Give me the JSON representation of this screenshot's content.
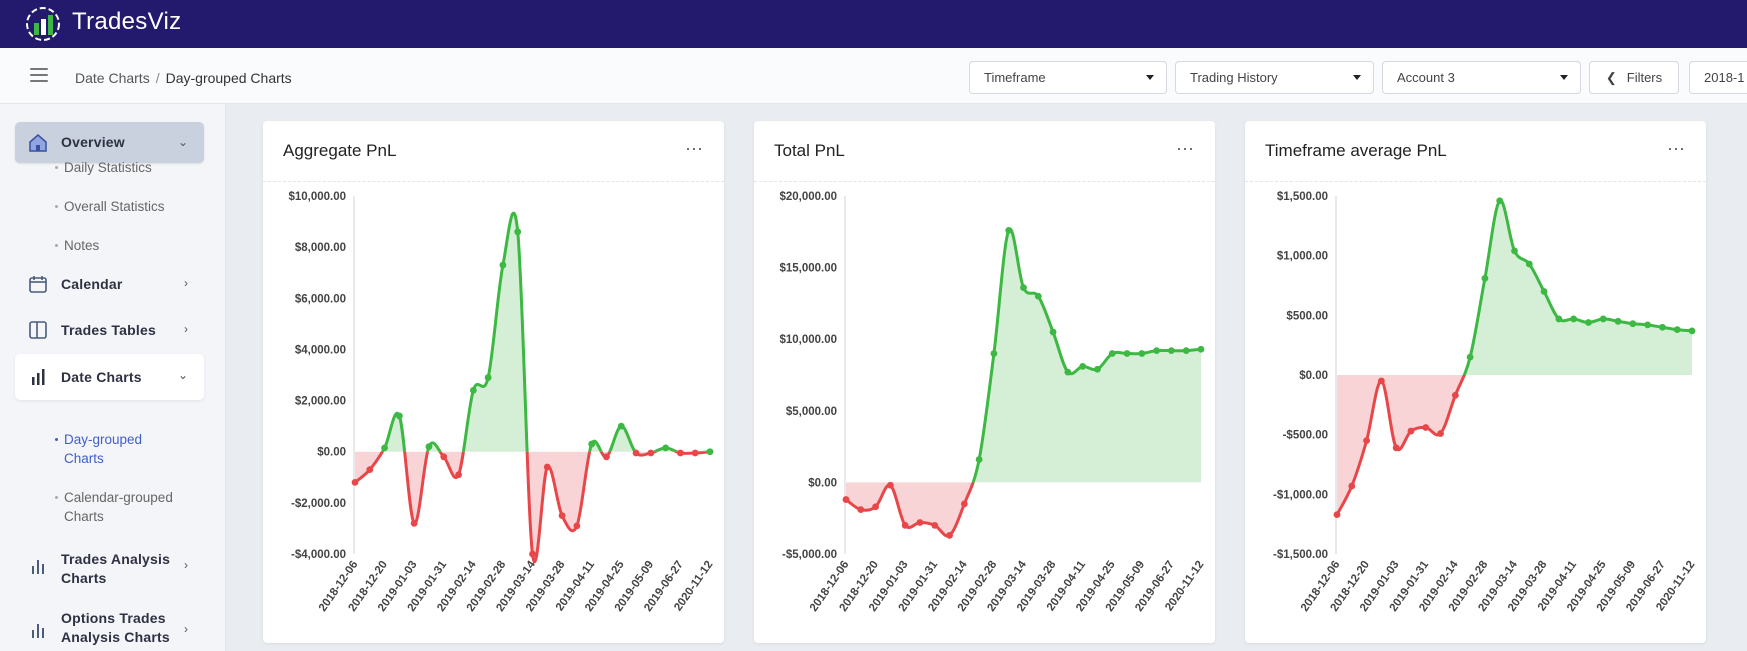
{
  "app": {
    "name": "TradesViz"
  },
  "breadcrumb": {
    "parent": "Date Charts",
    "separator": "/",
    "current": "Day-grouped Charts"
  },
  "toolbar": {
    "timeframe": "Timeframe",
    "history": "Trading History",
    "account": "Account 3",
    "filters": "Filters",
    "date": "2018-1"
  },
  "sidebar": {
    "overview": "Overview",
    "daily_statistics": "Daily Statistics",
    "overall_statistics": "Overall Statistics",
    "notes": "Notes",
    "calendar": "Calendar",
    "trades_tables": "Trades Tables",
    "date_charts": "Date Charts",
    "day_grouped_line1": "Day-grouped",
    "day_grouped_line2": "Charts",
    "calendar_grouped_line1": "Calendar-grouped",
    "calendar_grouped_line2": "Charts",
    "trades_analysis_line1": "Trades Analysis",
    "trades_analysis_line2": "Charts",
    "options_trades_line1": "Options Trades",
    "options_trades_line2": "Analysis Charts"
  },
  "colors": {
    "positive": "#3cb843",
    "negative": "#e8474a",
    "positive_fill": "#d4efd6",
    "negative_fill": "#f9d4d6",
    "topbar": "#231a6e"
  },
  "chart_data": [
    {
      "type": "area",
      "title": "Aggregate PnL",
      "ylim": [
        -4000,
        10000
      ],
      "yticks": [
        10000,
        8000,
        6000,
        4000,
        2000,
        0,
        -2000,
        -4000
      ],
      "ytick_labels": [
        "$10,000.00",
        "$8,000.00",
        "$6,000.00",
        "$4,000.00",
        "$2,000.00",
        "$0.00",
        "-$2,000.00",
        "-$4,000.00"
      ],
      "xtick_labels": [
        "2018-12-06",
        "2018-12-20",
        "2019-01-03",
        "2019-01-31",
        "2019-02-14",
        "2019-02-28",
        "2019-03-14",
        "2019-03-28",
        "2019-04-11",
        "2019-04-25",
        "2019-05-09",
        "2019-06-27",
        "2020-11-12"
      ],
      "values": [
        -1200,
        -700,
        150,
        1400,
        -2800,
        200,
        -200,
        -900,
        2400,
        2900,
        7300,
        8600,
        -4000,
        -600,
        -2500,
        -2900,
        300,
        -200,
        1000,
        -50,
        -50,
        150,
        -50,
        -50,
        0
      ]
    },
    {
      "type": "area",
      "title": "Total PnL",
      "ylim": [
        -5000,
        20000
      ],
      "yticks": [
        20000,
        15000,
        10000,
        5000,
        0,
        -5000
      ],
      "ytick_labels": [
        "$20,000.00",
        "$15,000.00",
        "$10,000.00",
        "$5,000.00",
        "$0.00",
        "-$5,000.00"
      ],
      "xtick_labels": [
        "2018-12-06",
        "2018-12-20",
        "2019-01-03",
        "2019-01-31",
        "2019-02-14",
        "2019-02-28",
        "2019-03-14",
        "2019-03-28",
        "2019-04-11",
        "2019-04-25",
        "2019-05-09",
        "2019-06-27",
        "2020-11-12"
      ],
      "values": [
        -1200,
        -1900,
        -1700,
        -200,
        -3000,
        -2800,
        -3000,
        -3700,
        -1500,
        1600,
        9000,
        17600,
        13600,
        13000,
        10500,
        7700,
        8100,
        7900,
        9000,
        9000,
        9000,
        9200,
        9200,
        9200,
        9300
      ]
    },
    {
      "type": "area",
      "title": "Timeframe average PnL",
      "ylim": [
        -1500,
        1500
      ],
      "yticks": [
        1500,
        1000,
        500,
        0,
        -500,
        -1000,
        -1500
      ],
      "ytick_labels": [
        "$1,500.00",
        "$1,000.00",
        "$500.00",
        "$0.00",
        "-$500.00",
        "-$1,000.00",
        "-$1,500.00"
      ],
      "xtick_labels": [
        "2018-12-06",
        "2018-12-20",
        "2019-01-03",
        "2019-01-31",
        "2019-02-14",
        "2019-02-28",
        "2019-03-14",
        "2019-03-28",
        "2019-04-11",
        "2019-04-25",
        "2019-05-09",
        "2019-06-27",
        "2020-11-12"
      ],
      "values": [
        -1170,
        -930,
        -550,
        -50,
        -610,
        -470,
        -440,
        -490,
        -170,
        150,
        810,
        1460,
        1040,
        930,
        700,
        470,
        470,
        440,
        470,
        450,
        430,
        420,
        400,
        380,
        370
      ]
    }
  ]
}
